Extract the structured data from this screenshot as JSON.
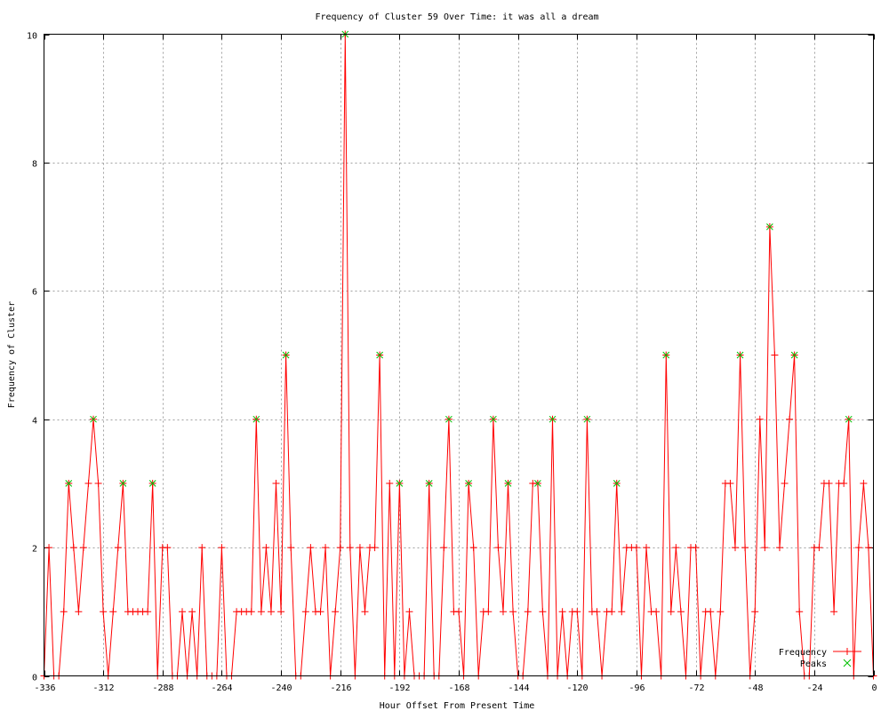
{
  "chart_data": {
    "type": "line",
    "title": "Frequency of Cluster 59 Over Time: it was all a dream",
    "xlabel": "Hour Offset From Present Time",
    "ylabel": "Frequency of Cluster",
    "xlim": [
      -336,
      0
    ],
    "ylim": [
      0,
      10
    ],
    "x_ticks": [
      -336,
      -312,
      -288,
      -264,
      -240,
      -216,
      -192,
      -168,
      -144,
      -120,
      -96,
      -72,
      -48,
      -24,
      0
    ],
    "y_ticks": [
      0,
      2,
      4,
      6,
      8,
      10
    ],
    "grid": true,
    "legend_position": "bottom-right",
    "series": [
      {
        "name": "Frequency",
        "style": "linespoints",
        "marker": "plus",
        "color": "#ff0000",
        "x": [
          -336,
          -334,
          -332,
          -330,
          -328,
          -326,
          -324,
          -322,
          -320,
          -318,
          -316,
          -314,
          -312,
          -310,
          -308,
          -306,
          -304,
          -302,
          -300,
          -298,
          -296,
          -294,
          -292,
          -290,
          -288,
          -286,
          -284,
          -282,
          -280,
          -278,
          -276,
          -274,
          -272,
          -270,
          -268,
          -266,
          -264,
          -262,
          -260,
          -258,
          -256,
          -254,
          -252,
          -250,
          -248,
          -246,
          -244,
          -242,
          -240,
          -238,
          -236,
          -234,
          -232,
          -230,
          -228,
          -226,
          -224,
          -222,
          -220,
          -218,
          -216,
          -214,
          -212,
          -210,
          -208,
          -206,
          -204,
          -202,
          -200,
          -198,
          -196,
          -194,
          -192,
          -190,
          -188,
          -186,
          -184,
          -182,
          -180,
          -178,
          -176,
          -174,
          -172,
          -170,
          -168,
          -166,
          -164,
          -162,
          -160,
          -158,
          -156,
          -154,
          -152,
          -150,
          -148,
          -146,
          -144,
          -142,
          -140,
          -138,
          -136,
          -134,
          -132,
          -130,
          -128,
          -126,
          -124,
          -122,
          -120,
          -118,
          -116,
          -114,
          -112,
          -110,
          -108,
          -106,
          -104,
          -102,
          -100,
          -98,
          -96,
          -94,
          -92,
          -90,
          -88,
          -86,
          -84,
          -82,
          -80,
          -78,
          -76,
          -74,
          -72,
          -70,
          -68,
          -66,
          -64,
          -62,
          -60,
          -58,
          -56,
          -54,
          -52,
          -50,
          -48,
          -46,
          -44,
          -42,
          -40,
          -38,
          -36,
          -34,
          -32,
          -30,
          -28,
          -26,
          -24,
          -22,
          -20,
          -18,
          -16,
          -14,
          -12,
          -10,
          -8,
          -6,
          -4,
          -2,
          0
        ],
        "y": [
          0,
          2,
          0,
          0,
          1,
          3,
          2,
          1,
          2,
          3,
          4,
          3,
          1,
          0,
          1,
          2,
          3,
          1,
          1,
          1,
          1,
          1,
          3,
          0,
          2,
          2,
          0,
          0,
          1,
          0,
          1,
          0,
          2,
          0,
          0,
          0,
          2,
          0,
          0,
          1,
          1,
          1,
          1,
          4,
          1,
          2,
          1,
          3,
          1,
          5,
          2,
          0,
          0,
          1,
          2,
          1,
          1,
          2,
          0,
          1,
          2,
          10,
          2,
          0,
          2,
          1,
          2,
          2,
          5,
          0,
          3,
          0,
          3,
          0,
          1,
          0,
          0,
          0,
          3,
          0,
          0,
          2,
          4,
          1,
          1,
          0,
          3,
          2,
          0,
          1,
          1,
          4,
          2,
          1,
          3,
          1,
          0,
          0,
          1,
          3,
          3,
          1,
          0,
          4,
          0,
          1,
          0,
          1,
          1,
          0,
          4,
          1,
          1,
          0,
          1,
          1,
          3,
          1,
          2,
          2,
          2,
          0,
          2,
          1,
          1,
          0,
          5,
          1,
          2,
          1,
          0,
          2,
          2,
          0,
          1,
          1,
          0,
          1,
          3,
          3,
          2,
          5,
          2,
          0,
          1,
          4,
          2,
          7,
          5,
          2,
          3,
          4,
          5,
          1,
          0,
          0,
          2,
          2,
          3,
          3,
          1,
          3,
          3,
          4,
          0,
          2,
          3,
          2,
          0
        ]
      },
      {
        "name": "Peaks",
        "style": "points",
        "marker": "cross",
        "color": "#00c000",
        "x": [
          -326,
          -316,
          -304,
          -292,
          -250,
          -238,
          -214,
          -200,
          -192,
          -180,
          -172,
          -164,
          -154,
          -148,
          -136,
          -130,
          -116,
          -104,
          -84,
          -54,
          -42,
          -32,
          -10
        ],
        "y": [
          3,
          4,
          3,
          3,
          4,
          5,
          10,
          5,
          3,
          3,
          4,
          3,
          4,
          3,
          3,
          4,
          4,
          3,
          5,
          5,
          7,
          5,
          4
        ]
      }
    ]
  }
}
